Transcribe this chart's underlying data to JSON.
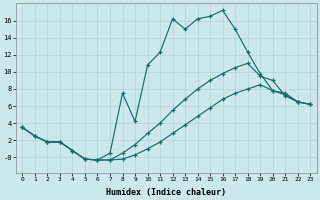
{
  "xlabel": "Humidex (Indice chaleur)",
  "bg_color": "#cce8ea",
  "line_color": "#1a6b6b",
  "grid_color": "#b0d4d8",
  "xlim": [
    -0.5,
    23.5
  ],
  "ylim": [
    -1.8,
    18.0
  ],
  "xticks": [
    0,
    1,
    2,
    3,
    4,
    5,
    6,
    7,
    8,
    9,
    10,
    11,
    12,
    13,
    14,
    15,
    16,
    17,
    18,
    19,
    20,
    21,
    22,
    23
  ],
  "yticks": [
    0,
    2,
    4,
    6,
    8,
    10,
    12,
    14,
    16
  ],
  "ytick_labels": [
    "-0",
    "2",
    "4",
    "6",
    "8",
    "10",
    "12",
    "14",
    "16"
  ],
  "line1_x": [
    0,
    1,
    2,
    3,
    4,
    5,
    6,
    7,
    8,
    9,
    10,
    11,
    12,
    13,
    14,
    15,
    16,
    17,
    18,
    19,
    20,
    21,
    22,
    23
  ],
  "line1_y": [
    3.5,
    2.5,
    1.8,
    1.8,
    0.8,
    -0.2,
    -0.3,
    -0.3,
    0.5,
    1.5,
    2.8,
    4.0,
    5.5,
    6.8,
    8.0,
    9.0,
    9.8,
    10.5,
    11.0,
    9.5,
    9.0,
    7.2,
    6.5,
    6.2
  ],
  "line2_x": [
    0,
    1,
    2,
    3,
    4,
    5,
    6,
    7,
    8,
    9,
    10,
    11,
    12,
    13,
    14,
    15,
    16,
    17,
    18,
    19,
    20,
    21,
    22,
    23
  ],
  "line2_y": [
    3.5,
    2.5,
    1.8,
    1.8,
    0.8,
    -0.2,
    -0.3,
    0.5,
    7.5,
    4.2,
    10.8,
    12.3,
    16.2,
    15.0,
    16.2,
    16.5,
    17.2,
    15.0,
    12.3,
    9.8,
    7.8,
    7.3,
    6.5,
    6.2
  ],
  "line3_x": [
    0,
    1,
    2,
    3,
    4,
    5,
    6,
    7,
    8,
    9,
    10,
    11,
    12,
    13,
    14,
    15,
    16,
    17,
    18,
    19,
    20,
    21,
    22,
    23
  ],
  "line3_y": [
    3.5,
    2.5,
    1.8,
    1.8,
    0.8,
    -0.2,
    -0.3,
    -0.3,
    -0.2,
    0.3,
    1.0,
    1.8,
    2.8,
    3.8,
    4.8,
    5.8,
    6.8,
    7.5,
    8.0,
    8.5,
    7.8,
    7.5,
    6.5,
    6.2
  ]
}
